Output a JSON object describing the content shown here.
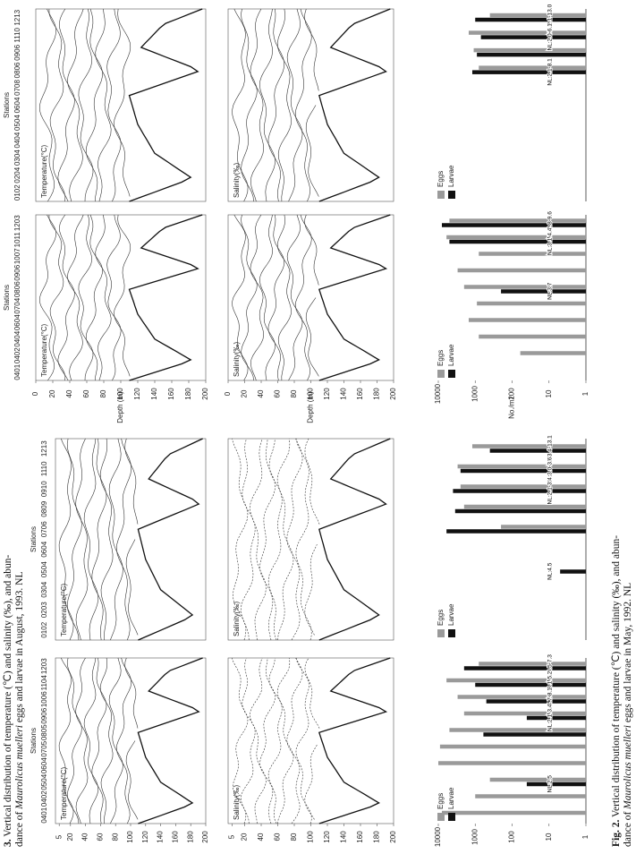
{
  "figures": [
    {
      "caption": {
        "label": "Fig. 2.",
        "line1": " Vertical distribution of temperature (℃) and salinity (‰), and abun-",
        "line2_start": "dance of ",
        "species": "Maurolicus muelleri",
        "line2_end": " eggs and larvae in May, 1992. NL"
      },
      "stations_title": "Stations",
      "temperature_label": "Temperature(°C)",
      "salinity_label": "Salinity(‰)",
      "depth_label": "Depth (m)",
      "abundance_label": "No./m2",
      "depth_lim": [
        0,
        200
      ],
      "depth_ticks": [
        0,
        20,
        40,
        60,
        80,
        100,
        120,
        140,
        160,
        180,
        200
      ],
      "panels": [
        {
          "stations": [
            "1213",
            "1110",
            "0906",
            "0806",
            "0708",
            "0604",
            "0504",
            "0404",
            "0304",
            "0204",
            "0102"
          ],
          "chart": {
            "type": "bar",
            "log": true,
            "ylim": [
              1,
              10000
            ],
            "categories": [
              null,
              null,
              null,
              null,
              null,
              null,
              null,
              null,
              null,
              null,
              null
            ],
            "series": [
              {
                "name": "Eggs",
                "color": "#9a9a9a",
                "values": [
                  400,
                  1500,
                  1100,
                  800,
                  null,
                  null,
                  null,
                  null,
                  null,
                  null,
                  null
                ]
              },
              {
                "name": "Larvae",
                "color": "#111111",
                "values": [
                  1000,
                  700,
                  900,
                  1200,
                  null,
                  null,
                  null,
                  null,
                  null,
                  null,
                  null
                ],
                "annotations": [
                  "NL:2.1-13.0",
                  "NL:2.0-6.1",
                  null,
                  "NL:2.1-8.1",
                  null,
                  null,
                  null,
                  null,
                  null,
                  null,
                  null
                ]
              }
            ]
          }
        },
        {
          "stations": [
            "1203",
            "1011",
            "1007",
            "0906",
            "0806",
            "0704",
            "0604",
            "0404",
            "0402",
            "0401"
          ],
          "chart": {
            "type": "bar",
            "log": true,
            "ylim": [
              1,
              10000
            ],
            "yticks": [
              10000,
              1000,
              100,
              10,
              1
            ],
            "categories": [
              null,
              null,
              null,
              null,
              null,
              null,
              null,
              null,
              null,
              null
            ],
            "series": [
              {
                "name": "Eggs",
                "color": "#9a9a9a",
                "values": [
                  5000,
                  6000,
                  800,
                  3000,
                  2000,
                  900,
                  1500,
                  800,
                  60,
                  null
                ]
              },
              {
                "name": "Larvae",
                "color": "#111111",
                "values": [
                  8000,
                  5000,
                  null,
                  null,
                  200,
                  null,
                  null,
                  null,
                  null,
                  null
                ],
                "annotations": [
                  "NL:2.8-9.6",
                  "NL:3.1-4.4",
                  null,
                  null,
                  "NL:3.7",
                  null,
                  null,
                  null,
                  null,
                  null
                ]
              }
            ]
          }
        }
      ]
    },
    {
      "caption": {
        "label": "3.",
        "line1": " Vertical distribution of temperature (℃) and salinity (‰), and abun-",
        "line2_start": "dance of ",
        "species": "Maurolicus muelleri",
        "line2_end": " eggs and larvae in August, 1993. NL"
      },
      "stations_title": "Stations",
      "temperature_label": "Temperature(°C)",
      "salinity_label": "Salinity(‰)",
      "depth_lim": [
        0,
        200
      ],
      "depth_ticks": [
        5,
        20,
        40,
        60,
        80,
        100,
        120,
        140,
        160,
        180,
        200
      ],
      "panels": [
        {
          "stations": [
            "1213",
            "1110",
            "0910",
            "0809",
            "0706",
            "0604",
            "0504",
            "0304",
            "0203",
            "0102"
          ],
          "chart": {
            "type": "bar",
            "log": true,
            "ylim": [
              1,
              10000
            ],
            "categories": [
              null,
              null,
              null,
              null,
              null,
              null,
              null,
              null,
              null,
              null
            ],
            "series": [
              {
                "name": "Eggs",
                "color": "#9a9a9a",
                "values": [
                  1200,
                  3000,
                  2500,
                  2000,
                  200,
                  null,
                  null,
                  null,
                  null,
                  null
                ]
              },
              {
                "name": "Larvae",
                "color": "#111111",
                "values": [
                  400,
                  2500,
                  4000,
                  3500,
                  6000,
                  null,
                  5,
                  null,
                  null,
                  null
                ],
                "annotations": [
                  "NL:3.4-13.1",
                  "NL:3.0-3.6",
                  "NL:2.1-3.4",
                  null,
                  null,
                  null,
                  "NL:4.5",
                  null,
                  null,
                  null
                ]
              }
            ]
          }
        },
        {
          "stations": [
            "1203",
            "1104",
            "1006",
            "0906",
            "0805",
            "0705",
            "0604",
            "0504",
            "0402",
            "0401"
          ],
          "chart": {
            "type": "bar",
            "log": true,
            "ylim": [
              1,
              10000
            ],
            "yticks": [
              10000,
              1000,
              100,
              10,
              1
            ],
            "categories": [
              null,
              null,
              null,
              null,
              null,
              null,
              null,
              null,
              null,
              null
            ],
            "series": [
              {
                "name": "Eggs",
                "color": "#9a9a9a",
                "values": [
                  800,
                  6000,
                  3000,
                  2000,
                  5000,
                  9000,
                  10000,
                  400,
                  1000,
                  8000
                ]
              },
              {
                "name": "Larvae",
                "color": "#111111",
                "values": [
                  2000,
                  1000,
                  500,
                  40,
                  600,
                  null,
                  null,
                  40,
                  null,
                  null
                ],
                "annotations": [
                  "NL:0.5-7.3",
                  "NL:3.1-5.2",
                  "NL:4.7-8.1",
                  "NL:2.1-3.4",
                  null,
                  null,
                  null,
                  "NL:2.5",
                  null,
                  null
                ]
              }
            ]
          }
        }
      ]
    }
  ]
}
